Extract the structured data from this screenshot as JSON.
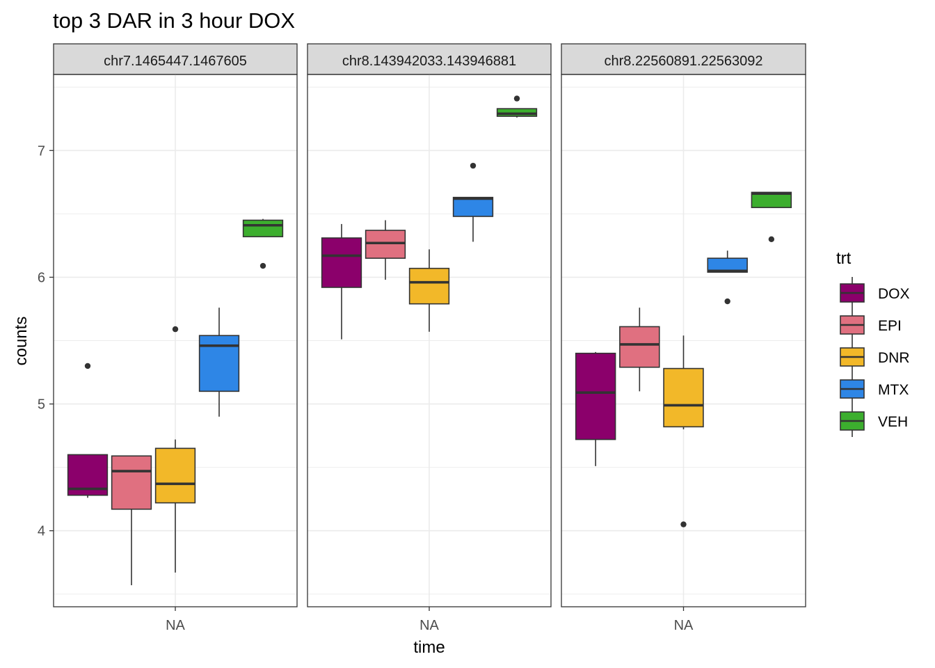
{
  "chart_data": {
    "type": "boxplot",
    "title": "top 3 DAR in 3 hour DOX",
    "xlabel": "time",
    "ylabel": "counts",
    "ylim": [
      3.4,
      7.6
    ],
    "yticks": [
      4,
      5,
      6,
      7
    ],
    "grid": true,
    "legend": {
      "title": "trt",
      "position": "right",
      "entries": [
        {
          "name": "DOX",
          "color": "#8B006B"
        },
        {
          "name": "EPI",
          "color": "#E07080"
        },
        {
          "name": "DNR",
          "color": "#F2B829"
        },
        {
          "name": "MTX",
          "color": "#2E86E6"
        },
        {
          "name": "VEH",
          "color": "#3CAE2E"
        }
      ]
    },
    "facets": [
      {
        "label": "chr7.1465447.1467605",
        "xtick": "NA",
        "boxes": [
          {
            "trt": "DOX",
            "whisker_low": 4.26,
            "q1": 4.28,
            "median": 4.33,
            "q3": 4.6,
            "whisker_high": 4.6,
            "outliers": [
              5.3
            ]
          },
          {
            "trt": "EPI",
            "whisker_low": 3.57,
            "q1": 4.17,
            "median": 4.47,
            "q3": 4.59,
            "whisker_high": 4.59,
            "outliers": []
          },
          {
            "trt": "DNR",
            "whisker_low": 3.67,
            "q1": 4.22,
            "median": 4.37,
            "q3": 4.65,
            "whisker_high": 4.72,
            "outliers": [
              5.59
            ]
          },
          {
            "trt": "MTX",
            "whisker_low": 4.9,
            "q1": 5.1,
            "median": 5.46,
            "q3": 5.54,
            "whisker_high": 5.76,
            "outliers": []
          },
          {
            "trt": "VEH",
            "whisker_low": 6.32,
            "q1": 6.32,
            "median": 6.41,
            "q3": 6.45,
            "whisker_high": 6.46,
            "outliers": [
              6.09
            ]
          }
        ]
      },
      {
        "label": "chr8.143942033.143946881",
        "xtick": "NA",
        "boxes": [
          {
            "trt": "DOX",
            "whisker_low": 5.51,
            "q1": 5.92,
            "median": 6.17,
            "q3": 6.31,
            "whisker_high": 6.42,
            "outliers": []
          },
          {
            "trt": "EPI",
            "whisker_low": 5.98,
            "q1": 6.15,
            "median": 6.27,
            "q3": 6.37,
            "whisker_high": 6.45,
            "outliers": []
          },
          {
            "trt": "DNR",
            "whisker_low": 5.57,
            "q1": 5.79,
            "median": 5.96,
            "q3": 6.07,
            "whisker_high": 6.22,
            "outliers": []
          },
          {
            "trt": "MTX",
            "whisker_low": 6.28,
            "q1": 6.48,
            "median": 6.62,
            "q3": 6.63,
            "whisker_high": 6.63,
            "outliers": [
              6.88
            ]
          },
          {
            "trt": "VEH",
            "whisker_low": 7.26,
            "q1": 7.27,
            "median": 7.29,
            "q3": 7.33,
            "whisker_high": 7.33,
            "outliers": [
              7.41
            ]
          }
        ]
      },
      {
        "label": "chr8.22560891.22563092",
        "xtick": "NA",
        "boxes": [
          {
            "trt": "DOX",
            "whisker_low": 4.51,
            "q1": 4.72,
            "median": 5.09,
            "q3": 5.4,
            "whisker_high": 5.41,
            "outliers": []
          },
          {
            "trt": "EPI",
            "whisker_low": 5.1,
            "q1": 5.29,
            "median": 5.47,
            "q3": 5.61,
            "whisker_high": 5.76,
            "outliers": []
          },
          {
            "trt": "DNR",
            "whisker_low": 4.8,
            "q1": 4.82,
            "median": 4.99,
            "q3": 5.28,
            "whisker_high": 5.54,
            "outliers": [
              4.05
            ]
          },
          {
            "trt": "MTX",
            "whisker_low": 6.04,
            "q1": 6.04,
            "median": 6.05,
            "q3": 6.15,
            "whisker_high": 6.21,
            "outliers": [
              5.81
            ]
          },
          {
            "trt": "VEH",
            "whisker_low": 6.55,
            "q1": 6.55,
            "median": 6.66,
            "q3": 6.67,
            "whisker_high": 6.67,
            "outliers": [
              6.3
            ]
          }
        ]
      }
    ]
  }
}
